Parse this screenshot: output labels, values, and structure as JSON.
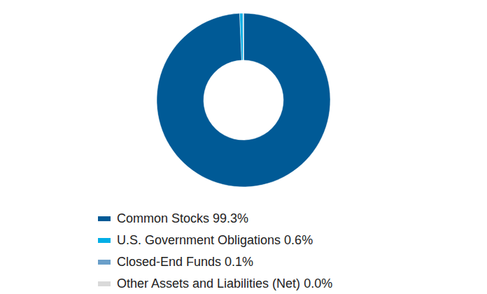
{
  "chart_data": {
    "type": "pie",
    "categories": [
      "Common Stocks",
      "U.S. Government Obligations",
      "Closed-End Funds",
      "Other Assets and Liabilities (Net)"
    ],
    "values": [
      99.3,
      0.6,
      0.1,
      0.0
    ],
    "value_labels": [
      "99.3%",
      "0.6%",
      "0.1%",
      "0.0%"
    ],
    "colors": [
      "#005a96",
      "#00aee6",
      "#6a9fc9",
      "#d9d9d9"
    ],
    "legend": "bottom"
  }
}
